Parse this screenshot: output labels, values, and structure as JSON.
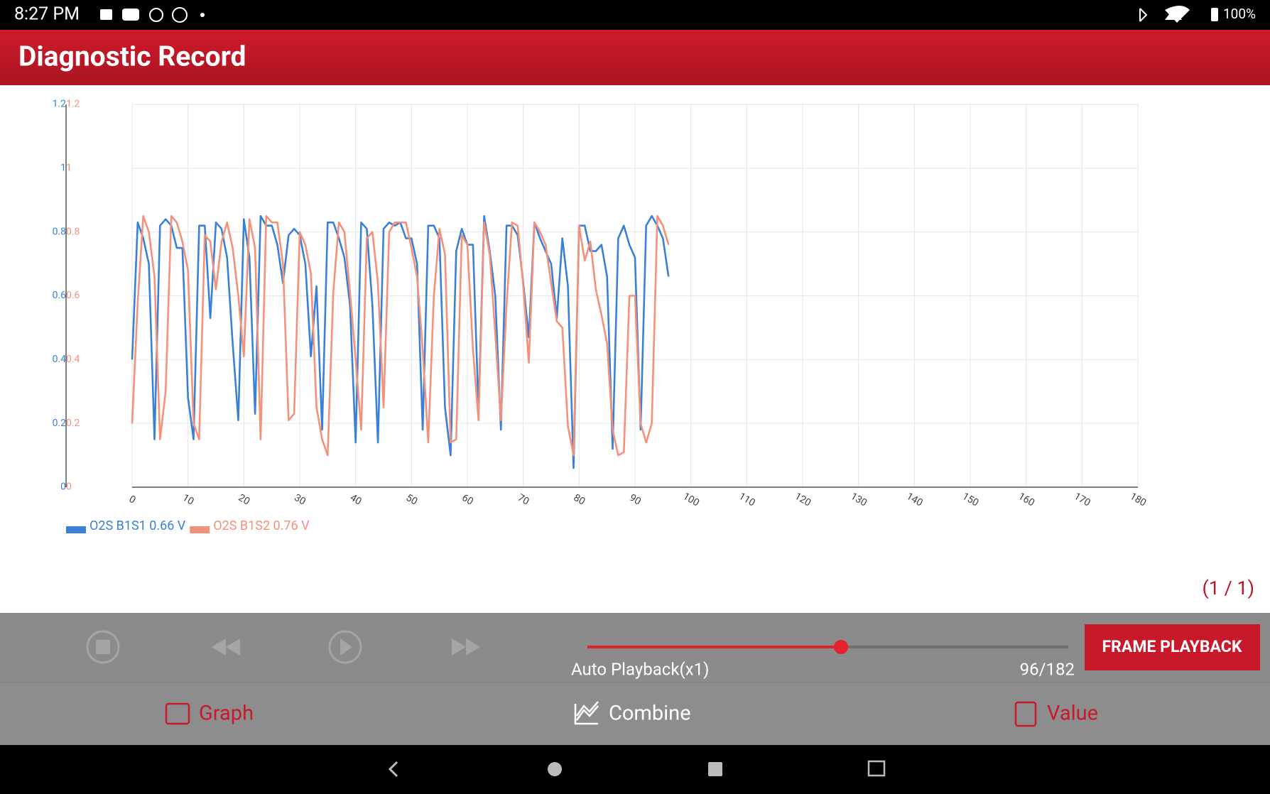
{
  "status_bar": {
    "time": "8:27 PM",
    "battery": "100%"
  },
  "header": {
    "title": "Diagnostic Record"
  },
  "chart_data": {
    "type": "line",
    "x": [
      0,
      1,
      2,
      3,
      4,
      5,
      6,
      7,
      8,
      9,
      10,
      11,
      12,
      13,
      14,
      15,
      16,
      17,
      18,
      19,
      20,
      21,
      22,
      23,
      24,
      25,
      26,
      27,
      28,
      29,
      30,
      31,
      32,
      33,
      34,
      35,
      36,
      37,
      38,
      39,
      40,
      41,
      42,
      43,
      44,
      45,
      46,
      47,
      48,
      49,
      50,
      51,
      52,
      53,
      54,
      55,
      56,
      57,
      58,
      59,
      60,
      61,
      62,
      63,
      64,
      65,
      66,
      67,
      68,
      69,
      70,
      71,
      72,
      73,
      74,
      75,
      76,
      77,
      78,
      79,
      80,
      81,
      82,
      83,
      84,
      85,
      86,
      87,
      88,
      89,
      90,
      91,
      92,
      93,
      94,
      95,
      96
    ],
    "series": [
      {
        "name": "O2S B1S1 0.66 V",
        "color": "#3a80d6",
        "values": [
          0.4,
          0.83,
          0.78,
          0.7,
          0.15,
          0.82,
          0.84,
          0.82,
          0.75,
          0.75,
          0.28,
          0.15,
          0.82,
          0.82,
          0.53,
          0.83,
          0.81,
          0.72,
          0.45,
          0.21,
          0.84,
          0.72,
          0.23,
          0.85,
          0.82,
          0.82,
          0.76,
          0.64,
          0.79,
          0.81,
          0.79,
          0.7,
          0.41,
          0.63,
          0.18,
          0.83,
          0.83,
          0.78,
          0.72,
          0.57,
          0.14,
          0.83,
          0.81,
          0.57,
          0.14,
          0.81,
          0.83,
          0.82,
          0.83,
          0.78,
          0.78,
          0.7,
          0.18,
          0.82,
          0.82,
          0.78,
          0.25,
          0.1,
          0.74,
          0.81,
          0.76,
          0.76,
          0.24,
          0.85,
          0.74,
          0.6,
          0.18,
          0.82,
          0.82,
          0.79,
          0.64,
          0.47,
          0.83,
          0.78,
          0.74,
          0.7,
          0.53,
          0.78,
          0.63,
          0.06,
          0.82,
          0.82,
          0.74,
          0.74,
          0.76,
          0.66,
          0.12,
          0.78,
          0.82,
          0.76,
          0.72,
          0.18,
          0.82,
          0.85,
          0.82,
          0.78,
          0.66
        ]
      },
      {
        "name": "O2S B1S2 0.76 V",
        "color": "#f4917a",
        "axis": "y2",
        "values": [
          0.2,
          0.58,
          0.85,
          0.8,
          0.66,
          0.15,
          0.3,
          0.85,
          0.83,
          0.77,
          0.68,
          0.2,
          0.15,
          0.79,
          0.77,
          0.62,
          0.77,
          0.83,
          0.75,
          0.6,
          0.41,
          0.84,
          0.75,
          0.15,
          0.85,
          0.83,
          0.83,
          0.7,
          0.21,
          0.23,
          0.8,
          0.76,
          0.67,
          0.25,
          0.15,
          0.1,
          0.61,
          0.83,
          0.8,
          0.61,
          0.4,
          0.18,
          0.78,
          0.8,
          0.64,
          0.25,
          0.8,
          0.83,
          0.83,
          0.83,
          0.75,
          0.66,
          0.43,
          0.14,
          0.6,
          0.81,
          0.73,
          0.14,
          0.15,
          0.79,
          0.76,
          0.43,
          0.21,
          0.83,
          0.73,
          0.48,
          0.21,
          0.57,
          0.83,
          0.82,
          0.63,
          0.39,
          0.83,
          0.8,
          0.76,
          0.64,
          0.52,
          0.5,
          0.19,
          0.1,
          0.82,
          0.71,
          0.77,
          0.62,
          0.54,
          0.45,
          0.18,
          0.1,
          0.11,
          0.6,
          0.6,
          0.2,
          0.14,
          0.2,
          0.85,
          0.82,
          0.76
        ]
      }
    ],
    "xlim": [
      0,
      180
    ],
    "xticks": [
      0,
      10,
      20,
      30,
      40,
      50,
      60,
      70,
      80,
      90,
      100,
      110,
      120,
      130,
      140,
      150,
      160,
      170,
      180
    ],
    "ylim": [
      0,
      1.2
    ],
    "yticks": [
      0,
      0.2,
      0.4,
      0.6,
      0.8,
      1,
      1.2
    ],
    "y2lim": [
      0,
      1.2
    ],
    "y2ticks": [
      0,
      0.2,
      0.4,
      0.6,
      0.8,
      1,
      1.2
    ],
    "grid": true
  },
  "page_indicator": "(1 / 1)",
  "playback": {
    "mode": "Auto Playback(x1)",
    "counter": "96/182",
    "slider": {
      "value": 96,
      "max": 182
    },
    "button": "FRAME PLAYBACK"
  },
  "tabs": [
    "Graph",
    "Combine",
    "Value"
  ]
}
